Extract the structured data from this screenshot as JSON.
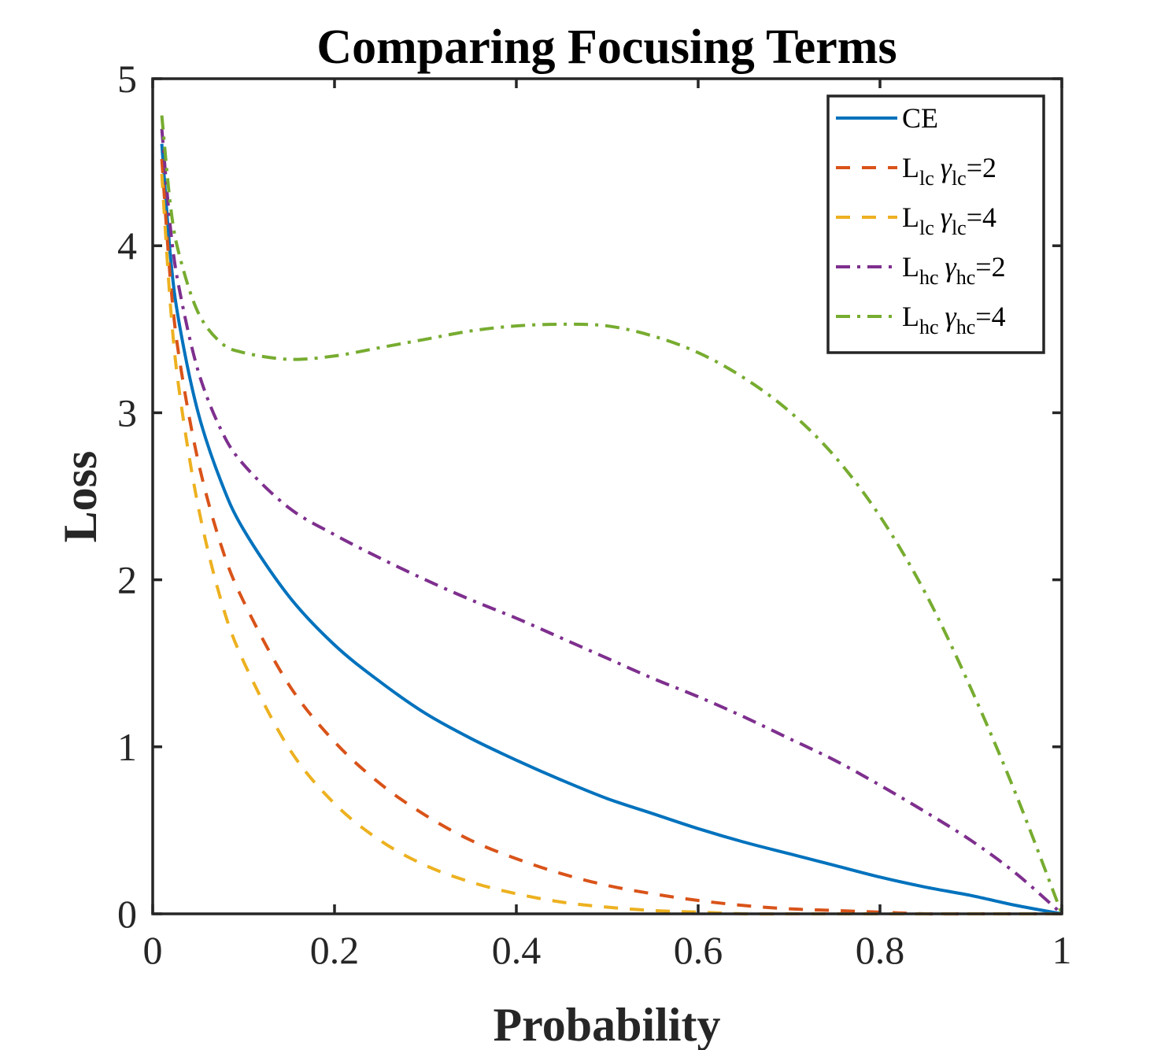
{
  "chart_data": {
    "type": "line",
    "title": "Comparing Focusing Terms",
    "xlabel": "Probability",
    "ylabel": "Loss",
    "xlim": [
      0,
      1
    ],
    "ylim": [
      0,
      5
    ],
    "xticks": [
      0,
      0.2,
      0.4,
      0.6,
      0.8,
      1
    ],
    "xtick_labels": [
      "0",
      "0.2",
      "0.4",
      "0.6",
      "0.8",
      "1"
    ],
    "yticks": [
      0,
      1,
      2,
      3,
      4,
      5
    ],
    "ytick_labels": [
      "0",
      "1",
      "2",
      "3",
      "4",
      "5"
    ],
    "grid": false,
    "legend_position": "top-right",
    "x": [
      0.01,
      0.02,
      0.03,
      0.05,
      0.075,
      0.1,
      0.15,
      0.2,
      0.25,
      0.3,
      0.35,
      0.4,
      0.45,
      0.5,
      0.55,
      0.6,
      0.65,
      0.7,
      0.75,
      0.8,
      0.85,
      0.9,
      0.95,
      1.0
    ],
    "series": [
      {
        "name": "CE",
        "label_main": "CE",
        "label_sub": "",
        "label_gamma": "",
        "label_gamma_sub": "",
        "label_value": "",
        "color": "#0072BD",
        "style": "solid",
        "values": [
          4.61,
          3.91,
          3.51,
          3.0,
          2.59,
          2.3,
          1.9,
          1.61,
          1.39,
          1.2,
          1.05,
          0.92,
          0.8,
          0.69,
          0.6,
          0.51,
          0.43,
          0.36,
          0.29,
          0.22,
          0.16,
          0.11,
          0.05,
          0.0
        ]
      },
      {
        "name": "L_lc γ_lc=2",
        "label_main": "L",
        "label_sub": "lc",
        "label_gamma": "γ",
        "label_gamma_sub": "lc",
        "label_value": "=2",
        "color": "#D95319",
        "style": "dashed",
        "values": [
          4.52,
          3.76,
          3.3,
          2.71,
          2.21,
          1.87,
          1.37,
          1.03,
          0.78,
          0.59,
          0.44,
          0.33,
          0.24,
          0.17,
          0.12,
          0.08,
          0.05,
          0.03,
          0.02,
          0.01,
          0.0,
          0.0,
          0.0,
          0.0
        ]
      },
      {
        "name": "L_lc γ_lc=4",
        "label_main": "L",
        "label_sub": "lc",
        "label_gamma": "γ",
        "label_gamma_sub": "lc",
        "label_value": "=4",
        "color": "#EDB120",
        "style": "dashed",
        "values": [
          4.43,
          3.61,
          3.1,
          2.44,
          1.88,
          1.51,
          0.99,
          0.66,
          0.44,
          0.29,
          0.19,
          0.12,
          0.07,
          0.04,
          0.02,
          0.01,
          0.0,
          0.0,
          0.0,
          0.0,
          0.0,
          0.0,
          0.0,
          0.0
        ]
      },
      {
        "name": "L_hc γ_hc=2",
        "label_main": "L",
        "label_sub": "hc",
        "label_gamma": "γ",
        "label_gamma_sub": "hc",
        "label_value": "=2",
        "color": "#7E2F8E",
        "style": "dashdot",
        "values": [
          4.7,
          4.08,
          3.72,
          3.25,
          2.9,
          2.69,
          2.43,
          2.27,
          2.13,
          2.0,
          1.88,
          1.77,
          1.65,
          1.53,
          1.41,
          1.3,
          1.18,
          1.05,
          0.92,
          0.77,
          0.61,
          0.44,
          0.24,
          0.0
        ]
      },
      {
        "name": "L_hc γ_hc=4",
        "label_main": "L",
        "label_sub": "hc",
        "label_gamma": "γ",
        "label_gamma_sub": "hc",
        "label_value": "=4",
        "color": "#77AC30",
        "style": "dashdot",
        "values": [
          4.78,
          4.22,
          3.93,
          3.6,
          3.42,
          3.36,
          3.32,
          3.34,
          3.39,
          3.44,
          3.49,
          3.52,
          3.53,
          3.52,
          3.46,
          3.36,
          3.21,
          3.01,
          2.74,
          2.38,
          1.92,
          1.35,
          0.71,
          0.0
        ]
      }
    ]
  }
}
